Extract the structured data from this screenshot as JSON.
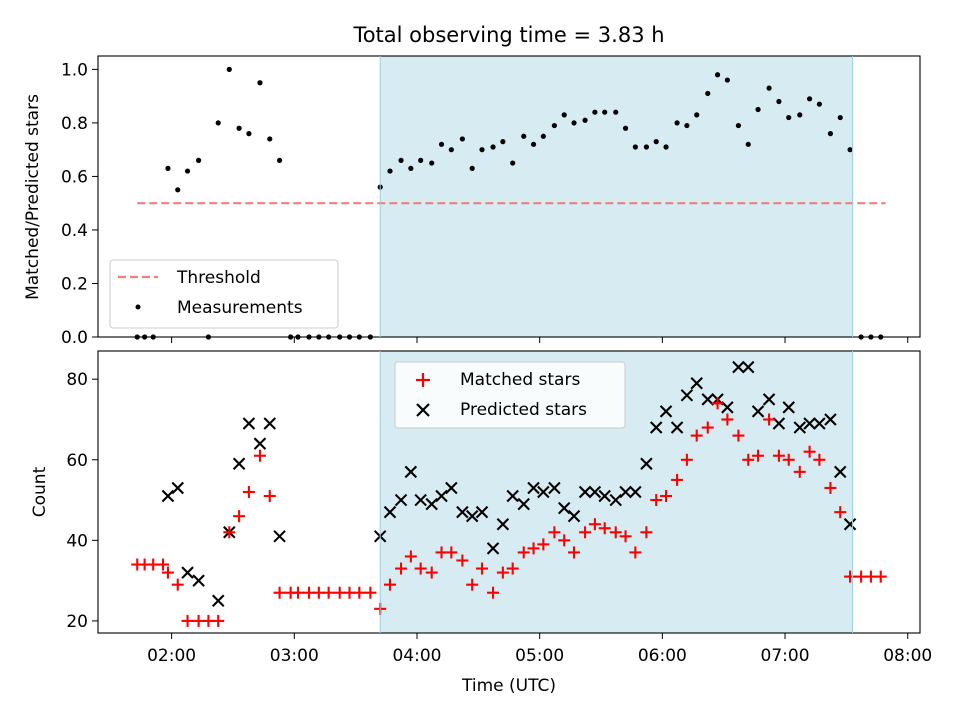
{
  "chart_data": [
    {
      "type": "scatter",
      "title": "Total observing time = 3.83 h",
      "ylabel": "Matched/Predicted stars",
      "xlabel": "",
      "x_unit": "hours UTC",
      "xlim": [
        1.4,
        8.1
      ],
      "ylim": [
        0.0,
        1.05
      ],
      "yticks": [
        0.0,
        0.2,
        0.4,
        0.6,
        0.8,
        1.0
      ],
      "ytick_labels": [
        "0.0",
        "0.2",
        "0.4",
        "0.6",
        "0.8",
        "1.0"
      ],
      "xticks": [
        2,
        3,
        4,
        5,
        6,
        7,
        8
      ],
      "shaded_region": {
        "x0": 3.7,
        "x1": 7.55,
        "color": "#add8e6"
      },
      "legend": {
        "position": "lower-left",
        "entries": [
          "Threshold",
          "Measurements"
        ]
      },
      "threshold": {
        "name": "Threshold",
        "value": 0.5,
        "x0": 1.72,
        "x1": 7.82,
        "color": "#f08080"
      },
      "series": [
        {
          "name": "Measurements",
          "color": "#000000",
          "x": [
            1.72,
            1.78,
            1.85,
            1.97,
            2.05,
            2.13,
            2.22,
            2.3,
            2.38,
            2.47,
            2.55,
            2.63,
            2.72,
            2.8,
            2.88,
            2.97,
            3.03,
            3.12,
            3.2,
            3.28,
            3.37,
            3.45,
            3.53,
            3.62,
            3.7,
            3.78,
            3.87,
            3.95,
            4.03,
            4.12,
            4.2,
            4.28,
            4.37,
            4.45,
            4.53,
            4.62,
            4.7,
            4.78,
            4.87,
            4.95,
            5.03,
            5.12,
            5.2,
            5.28,
            5.37,
            5.45,
            5.53,
            5.62,
            5.7,
            5.78,
            5.87,
            5.95,
            6.03,
            6.12,
            6.2,
            6.28,
            6.37,
            6.45,
            6.53,
            6.62,
            6.7,
            6.78,
            6.87,
            6.95,
            7.03,
            7.12,
            7.2,
            7.28,
            7.37,
            7.45,
            7.53,
            7.62,
            7.7,
            7.78
          ],
          "y": [
            0,
            0,
            0,
            0.63,
            0.55,
            0.62,
            0.66,
            0,
            0.8,
            1.0,
            0.78,
            0.76,
            0.95,
            0.74,
            0.66,
            0,
            0,
            0,
            0,
            0,
            0,
            0,
            0,
            0,
            0.56,
            0.62,
            0.66,
            0.63,
            0.66,
            0.65,
            0.72,
            0.7,
            0.74,
            0.63,
            0.7,
            0.71,
            0.73,
            0.65,
            0.75,
            0.72,
            0.75,
            0.79,
            0.83,
            0.8,
            0.81,
            0.84,
            0.84,
            0.84,
            0.78,
            0.71,
            0.71,
            0.73,
            0.71,
            0.8,
            0.79,
            0.83,
            0.91,
            0.98,
            0.96,
            0.79,
            0.72,
            0.85,
            0.93,
            0.88,
            0.82,
            0.83,
            0.89,
            0.87,
            0.76,
            0.82,
            0.7,
            0,
            0,
            0
          ]
        }
      ]
    },
    {
      "type": "scatter",
      "title": "",
      "ylabel": "Count",
      "xlabel": "Time (UTC)",
      "x_unit": "hours UTC",
      "xlim": [
        1.4,
        8.1
      ],
      "ylim": [
        17,
        87
      ],
      "yticks": [
        20,
        40,
        60,
        80
      ],
      "ytick_labels": [
        "20",
        "40",
        "60",
        "80"
      ],
      "xticks": [
        2,
        3,
        4,
        5,
        6,
        7,
        8
      ],
      "xtick_labels": [
        "02:00",
        "03:00",
        "04:00",
        "05:00",
        "06:00",
        "07:00",
        "08:00"
      ],
      "shaded_region": {
        "x0": 3.7,
        "x1": 7.55,
        "color": "#add8e6"
      },
      "legend": {
        "position": "upper-center",
        "entries": [
          "Matched stars",
          "Predicted stars"
        ]
      },
      "series": [
        {
          "name": "Matched stars",
          "marker": "plus",
          "color": "#ff0000",
          "x": [
            1.72,
            1.78,
            1.85,
            1.93,
            1.97,
            2.05,
            2.13,
            2.22,
            2.3,
            2.38,
            2.47,
            2.55,
            2.63,
            2.72,
            2.8,
            2.88,
            2.97,
            3.03,
            3.12,
            3.2,
            3.28,
            3.37,
            3.45,
            3.53,
            3.62,
            3.7,
            3.78,
            3.87,
            3.95,
            4.03,
            4.12,
            4.2,
            4.28,
            4.37,
            4.45,
            4.53,
            4.62,
            4.7,
            4.78,
            4.87,
            4.95,
            5.03,
            5.12,
            5.2,
            5.28,
            5.37,
            5.45,
            5.53,
            5.62,
            5.7,
            5.78,
            5.87,
            5.95,
            6.03,
            6.12,
            6.2,
            6.28,
            6.37,
            6.45,
            6.53,
            6.62,
            6.7,
            6.78,
            6.87,
            6.95,
            7.03,
            7.12,
            7.2,
            7.28,
            7.37,
            7.45,
            7.53,
            7.62,
            7.7,
            7.78
          ],
          "y": [
            34,
            34,
            34,
            34,
            32,
            29,
            20,
            20,
            20,
            20,
            42,
            46,
            52,
            61,
            51,
            27,
            27,
            27,
            27,
            27,
            27,
            27,
            27,
            27,
            27,
            23,
            29,
            33,
            36,
            33,
            32,
            37,
            37,
            35,
            29,
            33,
            27,
            32,
            33,
            37,
            38,
            39,
            42,
            40,
            37,
            42,
            44,
            43,
            42,
            41,
            37,
            42,
            50,
            51,
            55,
            60,
            66,
            68,
            74,
            70,
            66,
            60,
            61,
            70,
            61,
            60,
            57,
            62,
            60,
            53,
            47,
            31,
            31,
            31,
            31
          ]
        },
        {
          "name": "Predicted stars",
          "marker": "x",
          "color": "#000000",
          "x": [
            1.97,
            2.05,
            2.13,
            2.22,
            2.38,
            2.47,
            2.55,
            2.63,
            2.72,
            2.8,
            2.88,
            3.7,
            3.78,
            3.87,
            3.95,
            4.03,
            4.12,
            4.2,
            4.28,
            4.37,
            4.45,
            4.53,
            4.62,
            4.7,
            4.78,
            4.87,
            4.95,
            5.03,
            5.12,
            5.2,
            5.28,
            5.37,
            5.45,
            5.53,
            5.62,
            5.7,
            5.78,
            5.87,
            5.95,
            6.03,
            6.12,
            6.2,
            6.28,
            6.37,
            6.45,
            6.53,
            6.62,
            6.7,
            6.78,
            6.87,
            6.95,
            7.03,
            7.12,
            7.2,
            7.28,
            7.37,
            7.45,
            7.53
          ],
          "y": [
            51,
            53,
            32,
            30,
            25,
            42,
            59,
            69,
            64,
            69,
            41,
            41,
            47,
            50,
            57,
            50,
            49,
            51,
            53,
            47,
            46,
            47,
            38,
            44,
            51,
            49,
            53,
            52,
            53,
            48,
            46,
            52,
            52,
            51,
            50,
            52,
            52,
            59,
            68,
            72,
            68,
            76,
            79,
            75,
            75,
            73,
            83,
            83,
            72,
            75,
            69,
            73,
            68,
            69,
            69,
            70,
            57,
            44
          ]
        }
      ]
    }
  ]
}
